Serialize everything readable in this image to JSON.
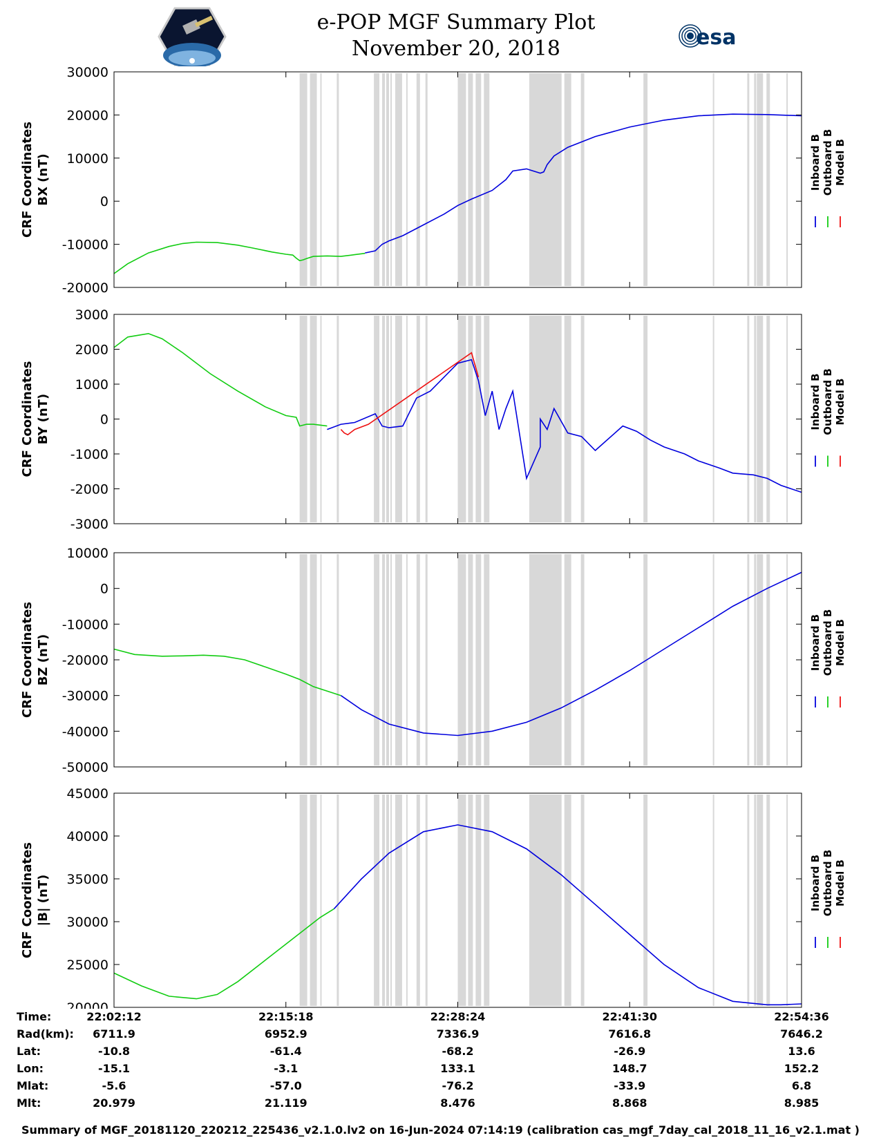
{
  "header": {
    "title": "e-POP MGF Summary Plot",
    "date": "November 20, 2018",
    "logo_left": "cassiope-mission-logo",
    "logo_right_text": "esa"
  },
  "colors": {
    "inboard": "#0000dd",
    "outboard": "#11cc11",
    "model": "#ee1111",
    "gap_shading": "#d8d8d8"
  },
  "legend": [
    "Inboard B",
    "Outboard B",
    "Model B"
  ],
  "chart_data": [
    {
      "type": "line",
      "ylabel_line1": "CRF Coordinates",
      "ylabel_line2": "BX (nT)",
      "ylim": [
        -20000,
        30000
      ],
      "yticks": [
        "30000",
        "20000",
        "10000",
        "0",
        "-10000",
        "-20000"
      ],
      "yvals": [
        30000,
        20000,
        10000,
        0,
        -10000,
        -20000
      ],
      "series": [
        {
          "name": "Outboard B",
          "x": [
            0,
            0.02,
            0.05,
            0.08,
            0.1,
            0.12,
            0.15,
            0.18,
            0.2,
            0.23,
            0.25,
            0.26,
            0.265,
            0.27,
            0.275,
            0.28,
            0.29,
            0.31,
            0.33,
            0.35,
            0.365
          ],
          "y": [
            -16800,
            -14500,
            -12000,
            -10500,
            -9800,
            -9500,
            -9600,
            -10200,
            -10800,
            -11800,
            -12300,
            -12500,
            -13200,
            -13800,
            -13600,
            -13300,
            -12800,
            -12700,
            -12800,
            -12400,
            -12100
          ]
        },
        {
          "name": "Inboard B",
          "x": [
            0.365,
            0.38,
            0.39,
            0.4,
            0.42,
            0.45,
            0.48,
            0.5,
            0.52,
            0.55,
            0.57,
            0.58,
            0.6,
            0.62,
            0.625,
            0.63,
            0.64,
            0.65,
            0.66,
            0.7,
            0.75,
            0.8,
            0.85,
            0.9,
            0.95,
            1.0
          ],
          "y": [
            -12000,
            -11500,
            -10000,
            -9200,
            -8000,
            -5500,
            -3000,
            -1000,
            500,
            2500,
            5000,
            7000,
            7500,
            6500,
            6800,
            8500,
            10500,
            11500,
            12500,
            15000,
            17200,
            18800,
            19800,
            20200,
            20100,
            19800
          ]
        },
        {
          "name": "Model B",
          "x": [],
          "y": []
        }
      ]
    },
    {
      "type": "line",
      "ylabel_line1": "CRF Coordinates",
      "ylabel_line2": "BY (nT)",
      "ylim": [
        -3000,
        3000
      ],
      "yticks": [
        "3000",
        "2000",
        "1000",
        "0",
        "-1000",
        "-2000",
        "-3000"
      ],
      "yvals": [
        3000,
        2000,
        1000,
        0,
        -1000,
        -2000,
        -3000
      ],
      "series": [
        {
          "name": "Outboard B",
          "x": [
            0,
            0.02,
            0.05,
            0.07,
            0.1,
            0.14,
            0.18,
            0.22,
            0.25,
            0.265,
            0.27,
            0.28,
            0.29,
            0.31
          ],
          "y": [
            2050,
            2350,
            2450,
            2300,
            1900,
            1300,
            800,
            350,
            100,
            50,
            -200,
            -150,
            -150,
            -200
          ]
        },
        {
          "name": "Inboard B",
          "x": [
            0.31,
            0.33,
            0.35,
            0.38,
            0.39,
            0.4,
            0.42,
            0.44,
            0.46,
            0.5,
            0.52,
            0.53,
            0.54,
            0.55,
            0.56,
            0.57,
            0.58,
            0.6,
            0.62,
            0.62,
            0.63,
            0.64,
            0.66,
            0.68,
            0.7,
            0.74,
            0.76,
            0.78,
            0.8,
            0.83,
            0.85,
            0.88,
            0.9,
            0.93,
            0.95,
            0.97,
            1.0
          ],
          "y": [
            -300,
            -150,
            -100,
            150,
            -200,
            -250,
            -200,
            600,
            800,
            1600,
            1700,
            1100,
            100,
            800,
            -300,
            300,
            800,
            -1700,
            -800,
            0,
            -300,
            300,
            -400,
            -500,
            -900,
            -200,
            -350,
            -600,
            -800,
            -1000,
            -1200,
            -1400,
            -1550,
            -1600,
            -1700,
            -1900,
            -2100
          ]
        },
        {
          "name": "Model B",
          "x": [
            0.33,
            0.335,
            0.34,
            0.35,
            0.37,
            0.52,
            0.53
          ],
          "y": [
            -300,
            -400,
            -450,
            -300,
            -150,
            1900,
            1200
          ]
        }
      ]
    },
    {
      "type": "line",
      "ylabel_line1": "CRF Coordinates",
      "ylabel_line2": "BZ (nT)",
      "ylim": [
        -50000,
        10000
      ],
      "yticks": [
        "10000",
        "0",
        "-10000",
        "-20000",
        "-30000",
        "-40000",
        "-50000"
      ],
      "yvals": [
        10000,
        0,
        -10000,
        -20000,
        -30000,
        -40000,
        -50000
      ],
      "series": [
        {
          "name": "Outboard B",
          "x": [
            0,
            0.03,
            0.07,
            0.1,
            0.13,
            0.16,
            0.19,
            0.22,
            0.25,
            0.27,
            0.29,
            0.33
          ],
          "y": [
            -17000,
            -18500,
            -19000,
            -18900,
            -18700,
            -19000,
            -20000,
            -22000,
            -24000,
            -25500,
            -27500,
            -30000
          ]
        },
        {
          "name": "Inboard B",
          "x": [
            0.33,
            0.36,
            0.4,
            0.45,
            0.5,
            0.55,
            0.6,
            0.65,
            0.7,
            0.75,
            0.8,
            0.85,
            0.9,
            0.95,
            1.0
          ],
          "y": [
            -30000,
            -34000,
            -38000,
            -40500,
            -41200,
            -40000,
            -37500,
            -33500,
            -28500,
            -23000,
            -17000,
            -11000,
            -5000,
            0,
            4500
          ]
        },
        {
          "name": "Model B",
          "x": [],
          "y": []
        }
      ]
    },
    {
      "type": "line",
      "ylabel_line1": "CRF Coordinates",
      "ylabel_line2": "|B| (nT)",
      "ylim": [
        20000,
        45000
      ],
      "yticks": [
        "45000",
        "40000",
        "35000",
        "30000",
        "25000",
        "20000"
      ],
      "yvals": [
        45000,
        40000,
        35000,
        30000,
        25000,
        20000
      ],
      "series": [
        {
          "name": "Outboard B",
          "x": [
            0,
            0.04,
            0.08,
            0.12,
            0.15,
            0.18,
            0.22,
            0.26,
            0.3,
            0.32
          ],
          "y": [
            24000,
            22500,
            21300,
            21000,
            21500,
            23000,
            25500,
            28000,
            30500,
            31500
          ]
        },
        {
          "name": "Inboard B",
          "x": [
            0.32,
            0.36,
            0.4,
            0.45,
            0.5,
            0.55,
            0.6,
            0.65,
            0.7,
            0.75,
            0.8,
            0.85,
            0.9,
            0.95,
            0.97,
            1.0
          ],
          "y": [
            31500,
            35000,
            38000,
            40500,
            41300,
            40500,
            38500,
            35500,
            32000,
            28500,
            25000,
            22300,
            20700,
            20300,
            20300,
            20400
          ]
        },
        {
          "name": "Model B",
          "x": [],
          "y": []
        }
      ]
    }
  ],
  "time_axis": {
    "labels": [
      "22:02:12",
      "22:15:18",
      "22:28:24",
      "22:41:30",
      "22:54:36"
    ]
  },
  "gaps": [
    [
      0.27,
      0.281
    ],
    [
      0.285,
      0.295
    ],
    [
      0.3,
      0.302
    ],
    [
      0.324,
      0.327
    ],
    [
      0.378,
      0.386
    ],
    [
      0.39,
      0.394
    ],
    [
      0.396,
      0.4
    ],
    [
      0.402,
      0.404
    ],
    [
      0.409,
      0.419
    ],
    [
      0.425,
      0.427
    ],
    [
      0.44,
      0.445
    ],
    [
      0.453,
      0.456
    ],
    [
      0.5,
      0.512
    ],
    [
      0.515,
      0.522
    ],
    [
      0.526,
      0.534
    ],
    [
      0.538,
      0.546
    ],
    [
      0.604,
      0.651
    ],
    [
      0.655,
      0.665
    ],
    [
      0.679,
      0.684
    ],
    [
      0.77,
      0.776
    ],
    [
      0.871,
      0.873
    ],
    [
      0.921,
      0.924
    ],
    [
      0.931,
      0.934
    ],
    [
      0.935,
      0.944
    ],
    [
      0.949,
      0.954
    ],
    [
      0.978,
      0.98
    ]
  ],
  "info_table": {
    "labels": [
      "Time:",
      "Rad(km):",
      "Lat:",
      "Lon:",
      "Mlat:",
      "Mlt:"
    ],
    "columns": [
      [
        "22:02:12",
        "6711.9",
        "-10.8",
        "-15.1",
        "-5.6",
        "20.979"
      ],
      [
        "22:15:18",
        "6952.9",
        "-61.4",
        "-3.1",
        "-57.0",
        "21.119"
      ],
      [
        "22:28:24",
        "7336.9",
        "-68.2",
        "133.1",
        "-76.2",
        "8.476"
      ],
      [
        "22:41:30",
        "7616.8",
        "-26.9",
        "148.7",
        "-33.9",
        "8.868"
      ],
      [
        "22:54:36",
        "7646.2",
        "13.6",
        "152.2",
        "6.8",
        "8.985"
      ]
    ]
  },
  "footer": "Summary of MGF_20181120_220212_225436_v2.1.0.lv2 on 16-Jun-2024 07:14:19 (calibration cas_mgf_7day_cal_2018_11_16_v2.1.mat )"
}
